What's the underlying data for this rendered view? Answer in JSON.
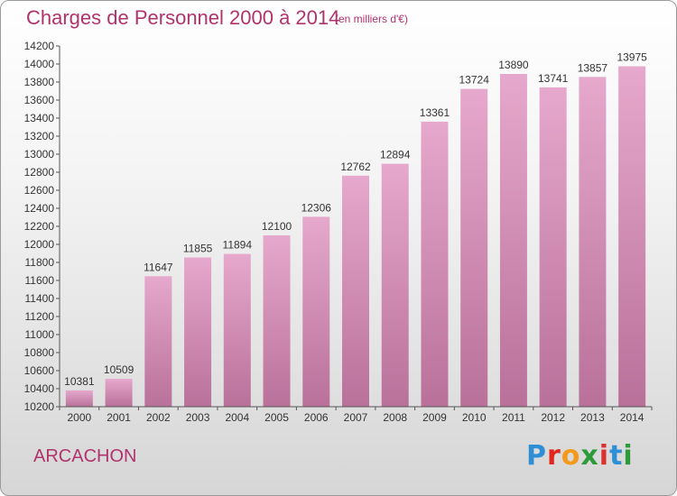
{
  "header": {
    "title": "Charges de Personnel 2000 à 2014",
    "unit_note": "(en milliers d'€)"
  },
  "footer": {
    "city": "ARCACHON",
    "brand_letters": [
      "P",
      "r",
      "o",
      "x",
      "i",
      "t",
      "i"
    ]
  },
  "colors": {
    "title": "#b0336e",
    "bar_top": "#e6a8cc",
    "bar_bottom": "#b9719a",
    "axis": "#555555"
  },
  "chart_data": {
    "type": "bar",
    "categories": [
      "2000",
      "2001",
      "2002",
      "2003",
      "2004",
      "2005",
      "2006",
      "2007",
      "2008",
      "2009",
      "2010",
      "2011",
      "2012",
      "2013",
      "2014"
    ],
    "values": [
      10381,
      10509,
      11647,
      11855,
      11894,
      12100,
      12306,
      12762,
      12894,
      13361,
      13724,
      13890,
      13741,
      13857,
      13975
    ],
    "ylim": [
      10200,
      14200
    ],
    "yticks": [
      10200,
      10400,
      10600,
      10800,
      11000,
      11200,
      11400,
      11600,
      11800,
      12000,
      12200,
      12400,
      12600,
      12800,
      13000,
      13200,
      13400,
      13600,
      13800,
      14000,
      14200
    ],
    "grid": false,
    "data_labels": true
  }
}
